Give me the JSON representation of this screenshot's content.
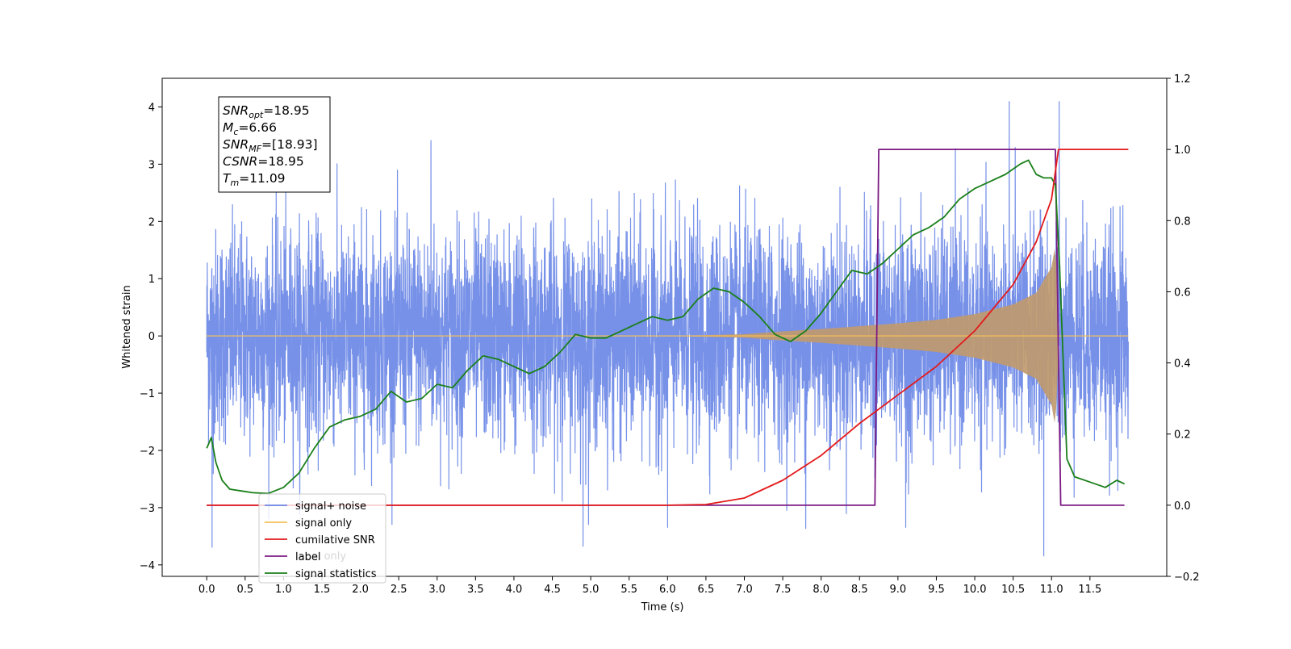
{
  "chart_data": {
    "type": "line",
    "title": "",
    "xlabel": "Time (s)",
    "ylabel": "Whitened strain",
    "ylabel_right": "",
    "xlim": [
      -0.58,
      12.5
    ],
    "ylim": [
      -4.2,
      4.5
    ],
    "ylim_right": [
      -0.2,
      1.2
    ],
    "x_ticks": [
      "0.0",
      "0.5",
      "1.0",
      "1.5",
      "2.0",
      "2.5",
      "3.0",
      "3.5",
      "4.0",
      "4.5",
      "5.0",
      "5.5",
      "6.0",
      "6.5",
      "7.0",
      "7.5",
      "8.0",
      "8.5",
      "9.0",
      "9.5",
      "10.0",
      "10.5",
      "11.0",
      "11.5"
    ],
    "y_ticks_left": [
      "−4",
      "−3",
      "−2",
      "−1",
      "0",
      "1",
      "2",
      "3",
      "4"
    ],
    "y_ticks_right": [
      "−0.2",
      "0.0",
      "0.2",
      "0.4",
      "0.6",
      "0.8",
      "1.0",
      "1.2"
    ],
    "legend_position": "lower-left",
    "grid": false,
    "series": [
      {
        "name": "signal+ noise",
        "axis": "left",
        "color": "#6b88e6",
        "description_values": {
          "t_start": 0.0,
          "t_end": 12.0,
          "noise_std": 1.0,
          "typical_range": [
            -3.0,
            3.0
          ],
          "extreme_peaks": [
            {
              "x": 4.9,
              "y": 3.55
            },
            {
              "x": 4.9,
              "y": -3.68
            },
            {
              "x": 0.07,
              "y": -3.7
            },
            {
              "x": 10.45,
              "y": 4.1
            },
            {
              "x": 11.1,
              "y": 4.1
            },
            {
              "x": 10.9,
              "y": -3.85
            },
            {
              "x": 2.92,
              "y": 3.42
            },
            {
              "x": 6.0,
              "y": -3.35
            },
            {
              "x": 7.8,
              "y": -3.37
            },
            {
              "x": 9.1,
              "y": -3.35
            }
          ]
        }
      },
      {
        "name": "signal only",
        "axis": "left",
        "color": "#f5c05a",
        "envelope": {
          "x": [
            0,
            6.0,
            7.0,
            7.5,
            8.0,
            8.5,
            9.0,
            9.5,
            10.0,
            10.5,
            10.8,
            11.0,
            11.05,
            11.1,
            12.0
          ],
          "amp": [
            0,
            0.0,
            0.03,
            0.08,
            0.12,
            0.17,
            0.22,
            0.28,
            0.38,
            0.55,
            0.75,
            1.2,
            1.6,
            0,
            0
          ]
        }
      },
      {
        "name": "cumilative SNR",
        "axis": "right",
        "color": "#e31a1c",
        "x": [
          0,
          6.0,
          6.5,
          7.0,
          7.5,
          8.0,
          8.5,
          9.0,
          9.5,
          10.0,
          10.5,
          10.8,
          11.0,
          11.09,
          11.1,
          12.0
        ],
        "values": [
          0,
          0.0,
          0.002,
          0.02,
          0.07,
          0.14,
          0.23,
          0.31,
          0.39,
          0.49,
          0.62,
          0.74,
          0.86,
          1.0,
          1.0,
          1.0
        ]
      },
      {
        "name": "label",
        "axis": "right",
        "color": "#7b1a82",
        "x": [
          0,
          8.7,
          8.75,
          11.05,
          11.12,
          11.95
        ],
        "values": [
          0,
          0,
          1,
          1,
          0,
          0
        ]
      },
      {
        "name": "signal statistics",
        "axis": "right",
        "color": "#1a7f1a",
        "x": [
          0.0,
          0.06,
          0.12,
          0.2,
          0.3,
          0.45,
          0.6,
          0.8,
          1.0,
          1.2,
          1.4,
          1.6,
          1.8,
          2.0,
          2.2,
          2.4,
          2.6,
          2.8,
          3.0,
          3.2,
          3.4,
          3.6,
          3.8,
          4.0,
          4.2,
          4.4,
          4.6,
          4.8,
          5.0,
          5.2,
          5.4,
          5.6,
          5.8,
          6.0,
          6.2,
          6.4,
          6.6,
          6.8,
          7.0,
          7.2,
          7.4,
          7.6,
          7.8,
          8.0,
          8.2,
          8.4,
          8.6,
          8.8,
          9.0,
          9.2,
          9.4,
          9.6,
          9.8,
          10.0,
          10.2,
          10.4,
          10.6,
          10.7,
          10.8,
          10.9,
          11.0,
          11.05,
          11.1,
          11.2,
          11.3,
          11.5,
          11.7,
          11.85,
          11.95
        ],
        "values": [
          0.16,
          0.19,
          0.12,
          0.07,
          0.045,
          0.04,
          0.035,
          0.033,
          0.05,
          0.09,
          0.16,
          0.22,
          0.24,
          0.25,
          0.27,
          0.32,
          0.29,
          0.3,
          0.34,
          0.33,
          0.38,
          0.42,
          0.41,
          0.39,
          0.37,
          0.39,
          0.43,
          0.48,
          0.47,
          0.47,
          0.49,
          0.51,
          0.53,
          0.52,
          0.53,
          0.58,
          0.61,
          0.6,
          0.57,
          0.53,
          0.48,
          0.46,
          0.49,
          0.54,
          0.6,
          0.66,
          0.65,
          0.68,
          0.72,
          0.76,
          0.78,
          0.81,
          0.86,
          0.89,
          0.91,
          0.93,
          0.96,
          0.97,
          0.93,
          0.92,
          0.92,
          0.9,
          0.7,
          0.13,
          0.08,
          0.065,
          0.05,
          0.07,
          0.06
        ]
      }
    ],
    "annotation": {
      "lines": [
        {
          "var": "SNR",
          "sub": "opt",
          "value": "=18.95"
        },
        {
          "var": "M",
          "sub": "c",
          "value": "=6.66"
        },
        {
          "var": "SNR",
          "sub": "MF",
          "value": "=[18.93]"
        },
        {
          "var": "CSNR",
          "sub": "",
          "value": "=18.95"
        },
        {
          "var": "T",
          "sub": "m",
          "value": "=11.09"
        }
      ]
    },
    "legend": [
      "signal+ noise",
      "signal only",
      "cumilative SNR",
      "label",
      "signal statistics"
    ],
    "legend_overlap_text": "label only"
  }
}
